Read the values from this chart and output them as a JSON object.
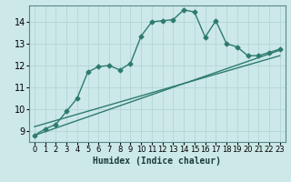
{
  "xlabel": "Humidex (Indice chaleur)",
  "background_color": "#cce8e8",
  "line_color": "#2e7b6e",
  "grid_color": "#b8d8d8",
  "xlim": [
    -0.5,
    23.5
  ],
  "ylim": [
    8.5,
    14.75
  ],
  "yticks": [
    9,
    10,
    11,
    12,
    13,
    14
  ],
  "xticks": [
    0,
    1,
    2,
    3,
    4,
    5,
    6,
    7,
    8,
    9,
    10,
    11,
    12,
    13,
    14,
    15,
    16,
    17,
    18,
    19,
    20,
    21,
    22,
    23
  ],
  "curve1_x": [
    0,
    1,
    2,
    3,
    4,
    5,
    6,
    7,
    8,
    9,
    10,
    11,
    12,
    13,
    14,
    15,
    16,
    17,
    18,
    19,
    20,
    21,
    22,
    23
  ],
  "curve1_y": [
    8.8,
    9.1,
    9.3,
    9.9,
    10.5,
    11.7,
    11.95,
    12.0,
    11.8,
    12.1,
    13.35,
    14.0,
    14.05,
    14.1,
    14.55,
    14.45,
    13.3,
    14.05,
    13.0,
    12.85,
    12.45,
    12.45,
    12.6,
    12.75
  ],
  "curve2_x": [
    0,
    23
  ],
  "curve2_y": [
    8.8,
    12.7
  ],
  "curve3_x": [
    0,
    23
  ],
  "curve3_y": [
    9.2,
    12.45
  ],
  "ylabel_fontsize": 7,
  "xlabel_fontsize": 7,
  "tick_fontsize": 6
}
